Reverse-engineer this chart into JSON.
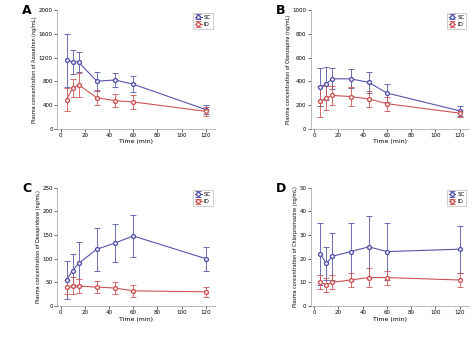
{
  "time": [
    5,
    10,
    15,
    30,
    45,
    60,
    120
  ],
  "panel_A": {
    "label": "A",
    "ylabel": "Plasma concentration of Azasetron (ng/mL)",
    "ylim": [
      0,
      2000
    ],
    "yticks": [
      0,
      400,
      800,
      1200,
      1600,
      2000
    ],
    "SC_mean": [
      1150,
      1130,
      1120,
      800,
      820,
      750,
      320
    ],
    "SC_err": [
      450,
      200,
      170,
      160,
      120,
      130,
      80
    ],
    "ID_mean": [
      490,
      680,
      740,
      520,
      470,
      450,
      290
    ],
    "ID_err": [
      200,
      150,
      200,
      130,
      110,
      120,
      80
    ]
  },
  "panel_B": {
    "label": "B",
    "ylabel": "Plasma concentration of Olanzapine (ng/mL)",
    "ylim": [
      0,
      1000
    ],
    "yticks": [
      0,
      200,
      400,
      600,
      800,
      1000
    ],
    "SC_mean": [
      350,
      380,
      420,
      420,
      390,
      300,
      150
    ],
    "SC_err": [
      160,
      140,
      90,
      80,
      90,
      80,
      40
    ],
    "ID_mean": [
      230,
      260,
      280,
      270,
      250,
      210,
      130
    ],
    "ID_err": [
      130,
      100,
      80,
      80,
      70,
      60,
      30
    ]
  },
  "panel_C": {
    "label": "C",
    "ylabel": "Plasma concentration of Desapridone (ng/mL)",
    "ylim": [
      0,
      250
    ],
    "yticks": [
      0,
      50,
      100,
      150,
      200,
      250
    ],
    "SC_mean": [
      55,
      75,
      90,
      120,
      133,
      148,
      100
    ],
    "SC_err": [
      40,
      35,
      45,
      45,
      40,
      45,
      25
    ],
    "ID_mean": [
      40,
      43,
      42,
      40,
      38,
      32,
      30
    ],
    "ID_err": [
      15,
      18,
      15,
      13,
      13,
      12,
      10
    ]
  },
  "panel_D": {
    "label": "D",
    "ylabel": "Plasma concentration of Chlorpromazine (ng/mL)",
    "ylim": [
      0,
      50
    ],
    "yticks": [
      0,
      10,
      20,
      30,
      40,
      50
    ],
    "SC_mean": [
      22,
      18,
      21,
      23,
      25,
      23,
      24
    ],
    "SC_err": [
      13,
      7,
      10,
      12,
      13,
      12,
      10
    ],
    "ID_mean": [
      10,
      9,
      10,
      11,
      12,
      12,
      11
    ],
    "ID_err": [
      3,
      3,
      3,
      3,
      4,
      3,
      3
    ]
  },
  "SC_color": "#5555aa",
  "ID_color": "#cc5555",
  "xlabel": "Time (min)",
  "xticks": [
    0,
    20,
    40,
    60,
    80,
    100,
    120
  ],
  "bg_color": "#ffffff"
}
